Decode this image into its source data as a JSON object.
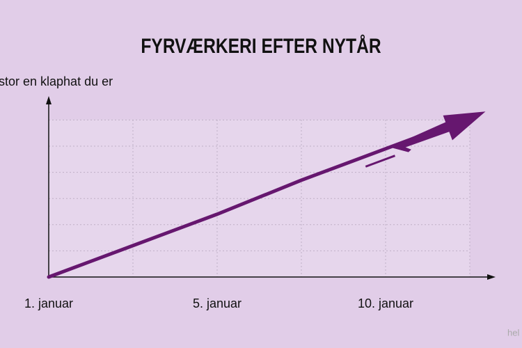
{
  "chart_data": {
    "type": "line",
    "title": "FYRVÆRKERI EFTER NYTÅR",
    "y_label": "stor en klaphat du er",
    "watermark": "hel",
    "categories": [
      "1. januar",
      null,
      "5. januar",
      null,
      "10. januar",
      null
    ],
    "series": [
      {
        "color": "#66176f",
        "values": [
          0,
          1.2,
          2.4,
          3.7,
          4.9,
          6.1
        ]
      }
    ],
    "ylim": [
      0,
      6.5
    ],
    "grid": true
  }
}
